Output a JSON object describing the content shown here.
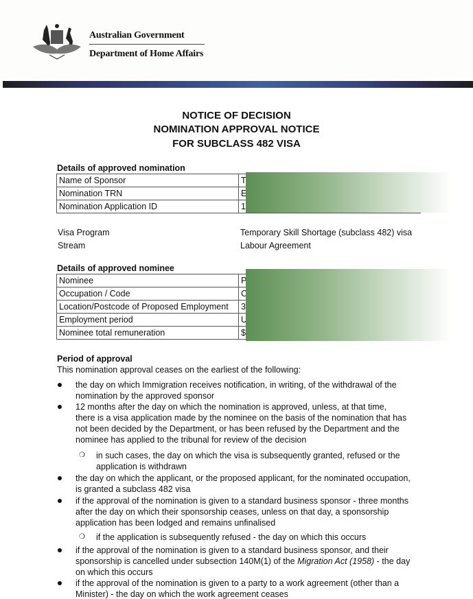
{
  "header": {
    "line1": "Australian Government",
    "line2": "Department of Home Affairs",
    "logo": "commonwealth-coat-of-arms"
  },
  "title": [
    "NOTICE OF DECISION",
    "NOMINATION APPROVAL NOTICE",
    "FOR SUBCLASS 482 VISA"
  ],
  "nomination": {
    "heading": "Details of approved nomination",
    "rows": [
      {
        "label": "Name of Sponsor",
        "value": "T"
      },
      {
        "label": "Nomination TRN",
        "value": "E"
      },
      {
        "label": "Nomination Application ID",
        "value": "1"
      }
    ]
  },
  "program": {
    "visa_label": "Visa Program",
    "visa_value": "Temporary Skill Shortage (subclass 482) visa",
    "stream_label": "Stream",
    "stream_value": "Labour Agreement"
  },
  "nominee": {
    "heading": "Details of approved nominee",
    "rows": [
      {
        "label": "Nominee",
        "value": "P"
      },
      {
        "label": "Occupation / Code",
        "value": "C"
      },
      {
        "label": "Location/Postcode of Proposed Employment",
        "value": "3"
      },
      {
        "label": "Employment period",
        "value": "U"
      },
      {
        "label": "Nominee total remuneration",
        "value": "$"
      }
    ]
  },
  "period": {
    "heading": "Period of approval",
    "intro": "This nomination approval ceases on the earliest of the following:",
    "b1": [
      "the day on which Immigration receives notification, in writing, of the withdrawal of the",
      "nomination by the approved sponsor"
    ],
    "b2": [
      "12 months after the day on which the nomination is approved, unless, at that time,",
      "there is a visa application made by the nominee on the basis of the nomination that has",
      "not been decided by the Department, or has been refused by the Department and the",
      "nominee has applied to the tribunal for review of the decision"
    ],
    "s1": [
      "in such cases, the day on which the visa is subsequently granted, refused or the",
      "application is withdrawn"
    ],
    "b3": [
      "the day on which the applicant, or the proposed applicant, for the nominated occupation,",
      "is granted a subclass 482 visa"
    ],
    "b4": [
      "if the approval of the nomination is given to a standard business sponsor - three months",
      "after the day on which their sponsorship ceases, unless on that day, a sponsorship",
      "application has been lodged and remains unfinalised"
    ],
    "s2": [
      "if the application is subsequently refused - the day on which this occurs"
    ],
    "b5": [
      "if the approval of the nomination is given to a standard business sponsor, and their",
      "sponsorship is cancelled under subsection 140M(1) of the ",
      "Migration Act (1958)",
      " - the day",
      "on which this occurs"
    ],
    "b6": [
      "if the approval of the nomination is given to a party to a work agreement (other than a",
      "Minister) - the day on which the work agreement ceases"
    ]
  }
}
